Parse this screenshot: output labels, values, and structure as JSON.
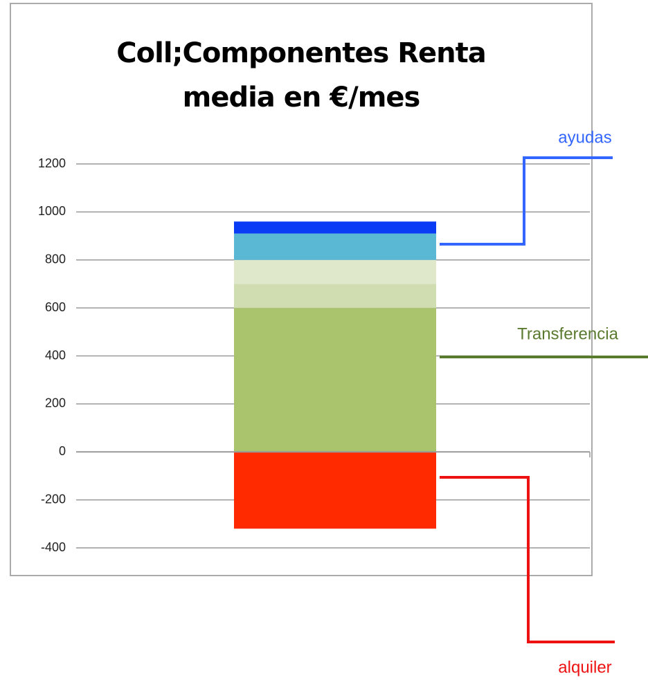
{
  "chart_data": {
    "type": "stacked_bar",
    "title": "Coll;Componentes Renta media en €/mes",
    "categories": [
      null
    ],
    "series": [
      {
        "color": "#ff2a00",
        "values": [
          -320
        ]
      },
      {
        "color": "#a9c46c",
        "values": [
          600
        ]
      },
      {
        "color": "#cfddb0",
        "values": [
          100
        ]
      },
      {
        "color": "#dfe8cb",
        "values": [
          100
        ]
      },
      {
        "color": "#5ab8d4",
        "values": [
          110
        ]
      },
      {
        "color": "#0a3cf5",
        "values": [
          50
        ]
      }
    ],
    "ylim": [
      -400,
      1200
    ],
    "yticks": [
      -400,
      -200,
      0,
      200,
      400,
      600,
      800,
      1000,
      1200
    ],
    "grid": true,
    "annotations": [
      {
        "text": "ayudas",
        "color": "#3366ff"
      },
      {
        "text": "Transferencia",
        "color": "#5a7a2f"
      },
      {
        "text": "alquiler",
        "color": "#ee1111"
      }
    ]
  }
}
